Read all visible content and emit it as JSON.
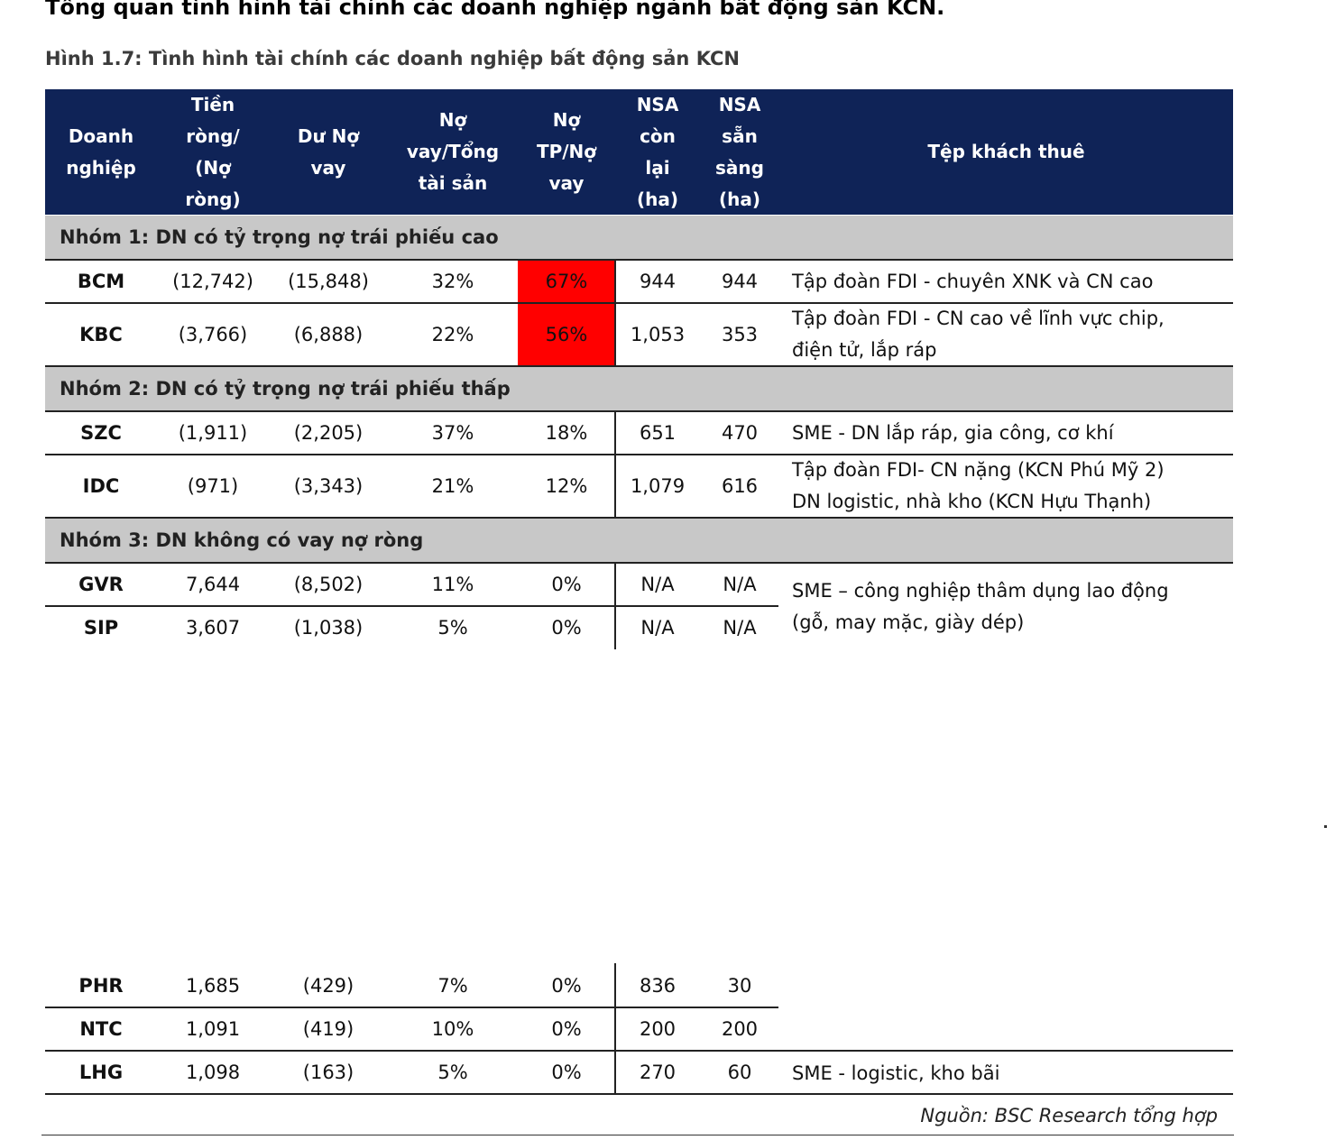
{
  "title": "Tổng quan tình hình tài chính các doanh nghiệp ngành bất động sản KCN.",
  "figure_caption": "Hình 1.7: Tình hình tài chính các doanh nghiệp bất động sản KCN",
  "headers": [
    "Doanh\nnghiệp",
    "Tiền\nròng/\n(Nợ\nròng)",
    "Dư Nợ\nvay",
    "Nợ\nvay/Tổng\ntài sản",
    "Nợ\nTP/Nợ\nvay",
    "NSA\ncòn\nlại\n(ha)",
    "NSA\nsẵn\nsàng\n(ha)",
    "Tệp khách thuê"
  ],
  "groups": [
    "Nhóm 1: DN có tỷ trọng nợ trái phiếu cao",
    "Nhóm 2: DN có tỷ trọng nợ trái phiếu thấp",
    "Nhóm 3: DN không có vay nợ ròng"
  ],
  "rows": [
    [
      "BCM",
      "(12,742)",
      "(15,848)",
      "32%",
      "67%",
      "944",
      "944"
    ],
    [
      "KBC",
      "(3,766)",
      "(6,888)",
      "22%",
      "56%",
      "1,053",
      "353"
    ],
    [
      "SZC",
      "(1,911)",
      "(2,205)",
      "37%",
      "18%",
      "651",
      "470"
    ],
    [
      "IDC",
      "(971)",
      "(3,343)",
      "21%",
      "12%",
      "1,079",
      "616"
    ],
    [
      "GVR",
      "7,644",
      "(8,502)",
      "11%",
      "0%",
      "N/A",
      "N/A"
    ],
    [
      "SIP",
      "3,607",
      "(1,038)",
      "5%",
      "0%",
      "N/A",
      "N/A"
    ],
    [
      "PHR",
      "1,685",
      "(429)",
      "7%",
      "0%",
      "836",
      "30"
    ],
    [
      "NTC",
      "1,091",
      "(419)",
      "10%",
      "0%",
      "200",
      "200"
    ],
    [
      "LHG",
      "1,098",
      "(163)",
      "5%",
      "0%",
      "270",
      "60"
    ]
  ],
  "tenants": {
    "BCM": "Tập đoàn FDI - chuyên XNK và CN cao",
    "KBC": "Tập đoàn FDI - CN cao về lĩnh vực chip,\nđiện tử, lắp ráp",
    "SZC": "SME - DN lắp ráp, gia công, cơ khí",
    "IDC": "Tập đoàn FDI- CN nặng (KCN Phú Mỹ 2)\nDN logistic, nhà kho (KCN Hựu Thạnh)",
    "GVR_SIP": "SME – công nghiệp thâm dụng lao động\n(gỗ, may mặc, giày dép)",
    "LHG": "SME - logistic, kho bãi"
  },
  "highlight_color": "#ff0000",
  "header_color": "#0f2357",
  "group_color": "#c8c8c8",
  "source": "Nguồn: BSC Research tổng hợp"
}
